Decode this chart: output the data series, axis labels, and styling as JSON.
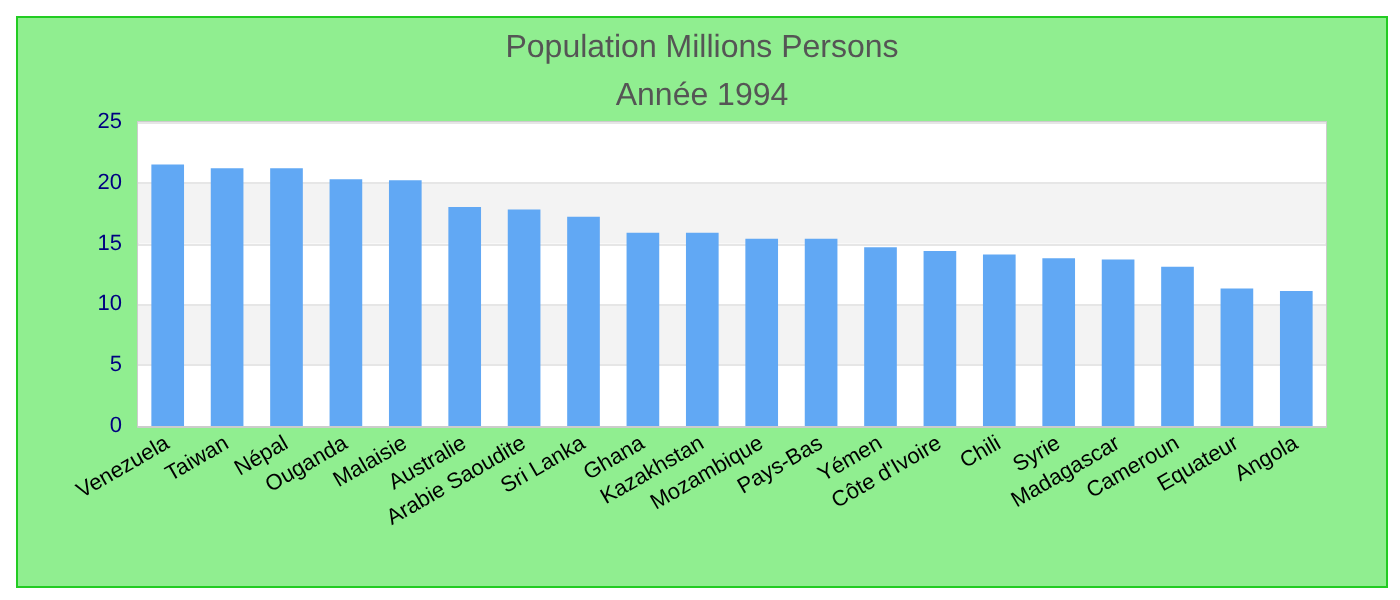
{
  "chart_data": {
    "type": "bar",
    "title": "Population Millions Persons",
    "subtitle": "Année 1994",
    "categories": [
      "Venezuela",
      "Taiwan",
      "Népal",
      "Ouganda",
      "Malaisie",
      "Australie",
      "Arabie Saoudite",
      "Sri Lanka",
      "Ghana",
      "Kazakhstan",
      "Mozambique",
      "Pays-Bas",
      "Yémen",
      "Côte d'Ivoire",
      "Chili",
      "Syrie",
      "Madagascar",
      "Cameroun",
      "Equateur",
      "Angola"
    ],
    "values": [
      21.5,
      21.2,
      21.2,
      20.3,
      20.2,
      18.0,
      17.8,
      17.2,
      15.9,
      15.9,
      15.4,
      15.4,
      14.7,
      14.4,
      14.1,
      13.8,
      13.7,
      13.1,
      11.3,
      11.1
    ],
    "color": "#61a8f4",
    "ylim": [
      0,
      25
    ],
    "yticks": [
      0,
      5,
      10,
      15,
      20,
      25
    ],
    "grid": "y"
  }
}
